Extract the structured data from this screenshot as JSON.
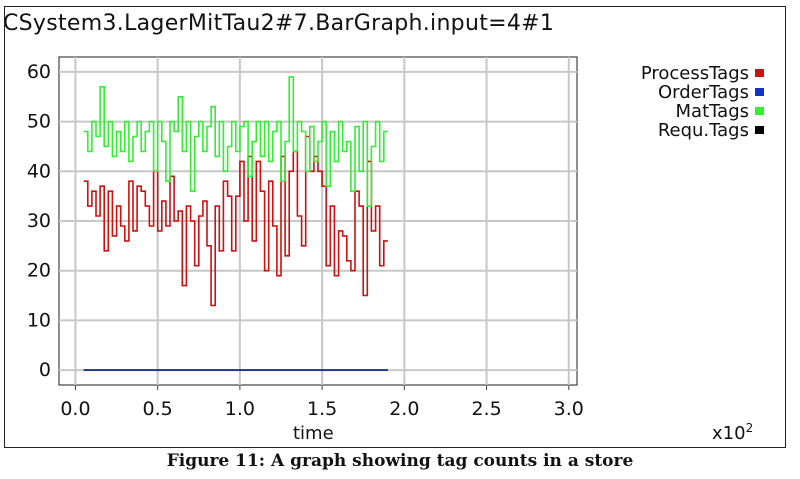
{
  "figure": {
    "caption": "Figure 11: A graph showing tag counts in a store",
    "scale_base": "x10",
    "scale_exp": "2"
  },
  "chart_data": {
    "type": "line",
    "title": "CSystem3.LagerMitTau2#7.BarGraph.input=4#1",
    "xlabel": "time",
    "ylabel": "",
    "xlim": [
      -0.1,
      3.05
    ],
    "ylim": [
      -3,
      63
    ],
    "x_ticks": [
      "0.0",
      "0.5",
      "1.0",
      "1.5",
      "2.0",
      "2.5",
      "3.0"
    ],
    "y_ticks": [
      "0",
      "10",
      "20",
      "30",
      "40",
      "50",
      "60"
    ],
    "grid": true,
    "legend_position": "top-right",
    "step": 0.025,
    "x_start": 0.05,
    "series": [
      {
        "name": "ProcessTags",
        "color": "#cc1111",
        "values": [
          38,
          33,
          36,
          31,
          37,
          24,
          36,
          27,
          33,
          29,
          26,
          38,
          28,
          37,
          36,
          33,
          29,
          40,
          28,
          34,
          29,
          39,
          30,
          32,
          17,
          33,
          30,
          21,
          31,
          34,
          25,
          13,
          33,
          24,
          38,
          35,
          24,
          35,
          42,
          30,
          43,
          26,
          42,
          36,
          20,
          38,
          29,
          19,
          43,
          23,
          40,
          44,
          31,
          25,
          47,
          40,
          43,
          40,
          37,
          21,
          33,
          19,
          28,
          27,
          22,
          20,
          36,
          33,
          15,
          42,
          28,
          33,
          21,
          26
        ]
      },
      {
        "name": "OrderTags",
        "color": "#1133cc",
        "values": [
          0,
          0,
          0,
          0,
          0,
          0,
          0,
          0,
          0,
          0,
          0,
          0,
          0,
          0,
          0,
          0,
          0,
          0,
          0,
          0,
          0,
          0,
          0,
          0,
          0,
          0,
          0,
          0,
          0,
          0,
          0,
          0,
          0,
          0,
          0,
          0,
          0,
          0,
          0,
          0,
          0,
          0,
          0,
          0,
          0,
          0,
          0,
          0,
          0,
          0,
          0,
          0,
          0,
          0,
          0,
          0,
          0,
          0,
          0,
          0,
          0,
          0,
          0,
          0,
          0,
          0,
          0,
          0,
          0,
          0,
          0,
          0,
          0,
          0
        ]
      },
      {
        "name": "MatTags",
        "color": "#33ee33",
        "values": [
          48,
          44,
          50,
          47,
          57,
          45,
          50,
          43,
          48,
          44,
          50,
          42,
          47,
          50,
          44,
          48,
          50,
          40,
          50,
          46,
          38,
          50,
          48,
          55,
          44,
          50,
          36,
          47,
          50,
          44,
          49,
          53,
          43,
          50,
          40,
          45,
          50,
          44,
          49,
          50,
          39,
          46,
          50,
          43,
          50,
          42,
          48,
          50,
          38,
          46,
          59,
          44,
          50,
          48,
          40,
          49,
          42,
          46,
          50,
          37,
          48,
          42,
          50,
          44,
          46,
          36,
          49,
          40,
          50,
          33,
          45,
          50,
          42,
          48
        ]
      },
      {
        "name": "Requ.Tags",
        "color": "#000000",
        "values": [
          0,
          0,
          0,
          0,
          0,
          0,
          0,
          0,
          0,
          0,
          0,
          0,
          0,
          0,
          0,
          0,
          0,
          0,
          0,
          0,
          0,
          0,
          0,
          0,
          0,
          0,
          0,
          0,
          0,
          0,
          0,
          0,
          0,
          0,
          0,
          0,
          0,
          0,
          0,
          0,
          0,
          0,
          0,
          0,
          0,
          0,
          0,
          0,
          0,
          0,
          0,
          0,
          0,
          0,
          0,
          0,
          0,
          0,
          0,
          0,
          0,
          0,
          0,
          0,
          0,
          0,
          0,
          0,
          0,
          0,
          0,
          0,
          0,
          0
        ]
      }
    ]
  }
}
